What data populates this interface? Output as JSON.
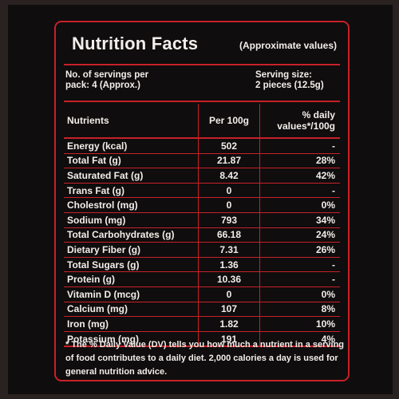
{
  "title": "Nutrition Facts",
  "subtitle": "(Approximate values)",
  "servings_line1": "No. of servings per",
  "servings_line2": "pack: 4 (Approx.)",
  "serving_size_line1": "Serving size:",
  "serving_size_line2": "2 pieces (12.5g)",
  "headers": {
    "nutrients": "Nutrients",
    "per100g": "Per 100g",
    "dv_line1": "% daily",
    "dv_line2": "values*/100g"
  },
  "rows": [
    {
      "name": "Energy (kcal)",
      "value": "502",
      "dv": "-"
    },
    {
      "name": "Total Fat (g)",
      "value": "21.87",
      "dv": "28%"
    },
    {
      "name": "Saturated Fat (g)",
      "value": "8.42",
      "dv": "42%"
    },
    {
      "name": "Trans Fat (g)",
      "value": "0",
      "dv": "-"
    },
    {
      "name": "Cholestrol (mg)",
      "value": "0",
      "dv": "0%"
    },
    {
      "name": "Sodium (mg)",
      "value": "793",
      "dv": "34%"
    },
    {
      "name": "Total Carbohydrates (g)",
      "value": "66.18",
      "dv": "24%"
    },
    {
      "name": "Dietary Fiber (g)",
      "value": "7.31",
      "dv": "26%"
    },
    {
      "name": "Total Sugars (g)",
      "value": "1.36",
      "dv": "-"
    },
    {
      "name": "Protein (g)",
      "value": "10.36",
      "dv": "-"
    },
    {
      "name": "Vitamin D (mcg)",
      "value": "0",
      "dv": "0%"
    },
    {
      "name": "Calcium (mg)",
      "value": "107",
      "dv": "8%"
    },
    {
      "name": "Iron (mg)",
      "value": "1.82",
      "dv": "10%"
    },
    {
      "name": "Potassium (mg)",
      "value": "191",
      "dv": "4%"
    }
  ],
  "footnote": "* The % Daily Value (DV) tells you how much a nutrient in a serving of food contributes to a daily diet. 2,000 calories a day is used for general nutrition advice.",
  "colors": {
    "accent": "#c8202a",
    "background": "#0f0d0d",
    "text": "#f2eeea"
  }
}
